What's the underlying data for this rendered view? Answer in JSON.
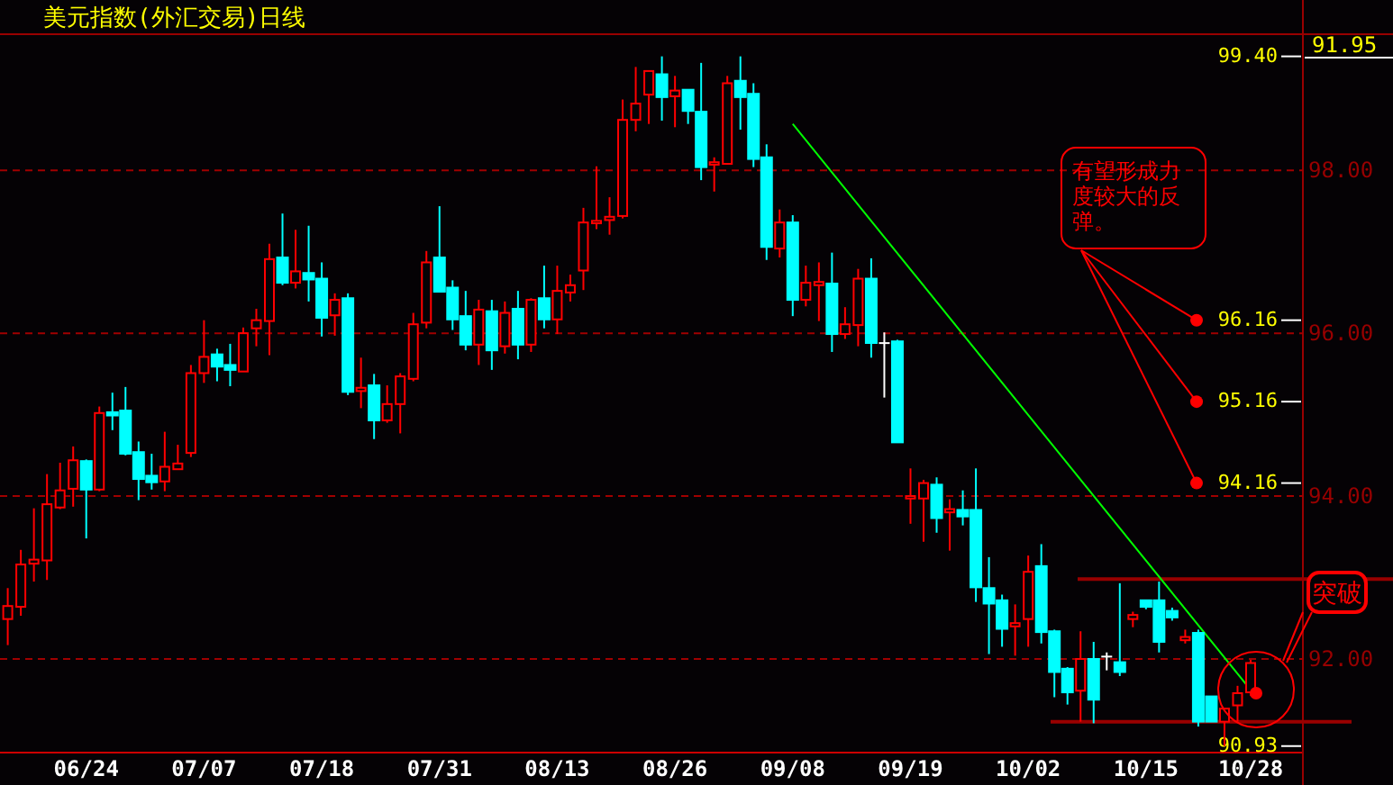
{
  "chart_data": {
    "type": "candlestick",
    "title": "美元指数(外汇交易)日线",
    "categories": [
      null,
      null,
      null,
      null,
      null,
      null,
      "06/24",
      null,
      null,
      null,
      null,
      null,
      null,
      null,
      null,
      "07/07",
      null,
      null,
      null,
      null,
      null,
      null,
      null,
      null,
      "07/18",
      null,
      null,
      null,
      null,
      null,
      null,
      null,
      null,
      "07/31",
      null,
      null,
      null,
      null,
      null,
      null,
      null,
      null,
      "08/13",
      null,
      null,
      null,
      null,
      null,
      null,
      null,
      null,
      "08/26",
      null,
      null,
      null,
      null,
      null,
      null,
      null,
      null,
      "09/08",
      null,
      null,
      null,
      null,
      null,
      null,
      null,
      null,
      "09/19",
      null,
      null,
      null,
      null,
      null,
      null,
      null,
      null,
      "10/02",
      null,
      null,
      null,
      null,
      null,
      null,
      null,
      null,
      "10/15",
      null,
      null,
      null,
      null,
      null,
      null,
      null,
      "10/28"
    ],
    "ohlc": [
      [
        92.49,
        92.87,
        92.17,
        92.65
      ],
      [
        92.64,
        93.34,
        92.53,
        93.16
      ],
      [
        93.17,
        93.85,
        92.95,
        93.22
      ],
      [
        93.21,
        94.27,
        92.97,
        93.9
      ],
      [
        93.86,
        94.41,
        93.84,
        94.07
      ],
      [
        94.09,
        94.61,
        93.87,
        94.44
      ],
      [
        94.43,
        94.45,
        93.48,
        94.08
      ],
      [
        94.08,
        95.1,
        94.06,
        95.02
      ],
      [
        95.03,
        95.27,
        94.81,
        94.99
      ],
      [
        95.05,
        95.34,
        94.5,
        94.52
      ],
      [
        94.54,
        94.67,
        93.95,
        94.21
      ],
      [
        94.25,
        94.52,
        94.08,
        94.17
      ],
      [
        94.18,
        94.79,
        94.06,
        94.36
      ],
      [
        94.33,
        94.63,
        94.33,
        94.4
      ],
      [
        94.53,
        95.61,
        94.48,
        95.51
      ],
      [
        95.51,
        96.16,
        95.39,
        95.71
      ],
      [
        95.74,
        95.81,
        95.41,
        95.59
      ],
      [
        95.61,
        95.87,
        95.35,
        95.55
      ],
      [
        95.53,
        96.07,
        95.53,
        96.0
      ],
      [
        96.06,
        96.3,
        95.84,
        96.16
      ],
      [
        96.15,
        97.1,
        95.73,
        96.91
      ],
      [
        96.93,
        97.47,
        96.59,
        96.62
      ],
      [
        96.62,
        97.27,
        96.55,
        96.76
      ],
      [
        96.74,
        97.32,
        96.39,
        96.66
      ],
      [
        96.67,
        96.87,
        95.96,
        96.19
      ],
      [
        96.22,
        96.49,
        95.97,
        96.41
      ],
      [
        96.43,
        96.49,
        95.24,
        95.28
      ],
      [
        95.29,
        95.7,
        95.08,
        95.33
      ],
      [
        95.36,
        95.5,
        94.7,
        94.93
      ],
      [
        94.93,
        95.36,
        94.9,
        95.13
      ],
      [
        95.13,
        95.51,
        94.77,
        95.47
      ],
      [
        95.44,
        96.25,
        95.41,
        96.11
      ],
      [
        96.13,
        97.01,
        96.06,
        96.87
      ],
      [
        96.93,
        97.56,
        96.5,
        96.51
      ],
      [
        96.56,
        96.65,
        96.04,
        96.17
      ],
      [
        96.21,
        96.52,
        95.79,
        95.86
      ],
      [
        95.86,
        96.41,
        95.61,
        96.29
      ],
      [
        96.27,
        96.41,
        95.55,
        95.79
      ],
      [
        95.84,
        96.39,
        95.75,
        96.25
      ],
      [
        96.3,
        96.52,
        95.68,
        95.86
      ],
      [
        95.86,
        96.43,
        95.77,
        96.41
      ],
      [
        96.43,
        96.83,
        96.06,
        96.17
      ],
      [
        96.17,
        96.83,
        95.99,
        96.52
      ],
      [
        96.5,
        96.72,
        96.39,
        96.59
      ],
      [
        96.77,
        97.54,
        96.53,
        97.36
      ],
      [
        97.35,
        98.05,
        97.28,
        97.38
      ],
      [
        97.39,
        97.67,
        97.21,
        97.43
      ],
      [
        97.44,
        98.87,
        97.41,
        98.62
      ],
      [
        98.62,
        99.27,
        98.48,
        98.82
      ],
      [
        98.93,
        99.22,
        98.57,
        99.22
      ],
      [
        99.18,
        99.4,
        98.61,
        98.9
      ],
      [
        98.91,
        99.16,
        98.53,
        98.98
      ],
      [
        98.99,
        98.99,
        98.57,
        98.73
      ],
      [
        98.72,
        99.32,
        97.88,
        98.04
      ],
      [
        98.07,
        98.16,
        97.74,
        98.1
      ],
      [
        98.08,
        99.16,
        98.08,
        99.07
      ],
      [
        99.1,
        99.4,
        98.5,
        98.9
      ],
      [
        98.94,
        99.07,
        98.04,
        98.14
      ],
      [
        98.16,
        98.32,
        96.9,
        97.06
      ],
      [
        97.04,
        97.52,
        96.93,
        97.36
      ],
      [
        97.36,
        97.45,
        96.21,
        96.41
      ],
      [
        96.41,
        96.83,
        96.33,
        96.62
      ],
      [
        96.59,
        96.87,
        96.15,
        96.63
      ],
      [
        96.61,
        96.99,
        95.77,
        95.99
      ],
      [
        95.99,
        96.32,
        95.93,
        96.11
      ],
      [
        96.1,
        96.79,
        95.84,
        96.67
      ],
      [
        96.67,
        96.92,
        95.7,
        95.88
      ],
      [
        95.89,
        96.01,
        95.21,
        95.89
      ],
      [
        95.9,
        95.92,
        94.66,
        94.66
      ],
      [
        93.97,
        94.34,
        93.66,
        94.0
      ],
      [
        93.97,
        94.2,
        93.44,
        94.16
      ],
      [
        94.14,
        94.23,
        93.55,
        93.73
      ],
      [
        93.8,
        93.96,
        93.33,
        93.84
      ],
      [
        93.83,
        94.07,
        93.64,
        93.75
      ],
      [
        93.83,
        94.34,
        92.7,
        92.88
      ],
      [
        92.87,
        93.25,
        92.06,
        92.68
      ],
      [
        92.72,
        92.79,
        92.15,
        92.37
      ],
      [
        92.4,
        92.67,
        92.04,
        92.44
      ],
      [
        92.49,
        93.27,
        92.15,
        93.07
      ],
      [
        93.14,
        93.41,
        92.19,
        92.33
      ],
      [
        92.34,
        92.36,
        91.53,
        91.84
      ],
      [
        91.88,
        91.9,
        91.44,
        91.59
      ],
      [
        91.61,
        92.34,
        91.23,
        92.0
      ],
      [
        92.0,
        92.21,
        91.21,
        91.5
      ],
      [
        92.04,
        92.08,
        91.86,
        92.04
      ],
      [
        91.96,
        92.93,
        91.79,
        91.84
      ],
      [
        92.49,
        92.58,
        92.39,
        92.54
      ],
      [
        92.72,
        92.72,
        92.61,
        92.64
      ],
      [
        92.72,
        92.95,
        92.08,
        92.21
      ],
      [
        92.59,
        92.63,
        92.47,
        92.51
      ],
      [
        92.23,
        92.36,
        92.19,
        92.27
      ],
      [
        92.32,
        92.36,
        91.17,
        91.23
      ],
      [
        91.54,
        91.54,
        91.23,
        91.23
      ],
      [
        91.23,
        91.39,
        90.93,
        91.39
      ],
      [
        91.43,
        91.67,
        91.23,
        91.58
      ],
      [
        91.59,
        91.99,
        91.55,
        91.95
      ]
    ],
    "series": [
      {
        "type": "line",
        "x": [
          "09/08",
          "10/28"
        ],
        "values": [
          98.57,
          91.62
        ],
        "color": "#00ff00"
      }
    ],
    "ylim": [
      90.85,
      99.65
    ],
    "yticks": [
      {
        "value": 98,
        "label": "98.00"
      },
      {
        "value": 96,
        "label": "96.00"
      },
      {
        "value": 94,
        "label": "94.00"
      },
      {
        "value": 92,
        "label": "92.00"
      }
    ],
    "y2lim": [
      90.85,
      99.65
    ],
    "y2ticks": [
      {
        "value": 99.4,
        "label": "99.40"
      },
      {
        "value": 96.16,
        "label": "96.16"
      },
      {
        "value": 95.16,
        "label": "95.16"
      },
      {
        "value": 94.16,
        "label": "94.16"
      },
      {
        "value": 90.93,
        "label": "90.93"
      }
    ],
    "grid": "y",
    "ref_lines": [
      {
        "axis": "y",
        "value": 92.98,
        "color": "#990000"
      },
      {
        "axis": "y",
        "value": 91.23,
        "color": "#990000"
      }
    ],
    "annotations": [
      "有望形成力度较大的反弹。",
      "突破",
      "91.95"
    ]
  }
}
